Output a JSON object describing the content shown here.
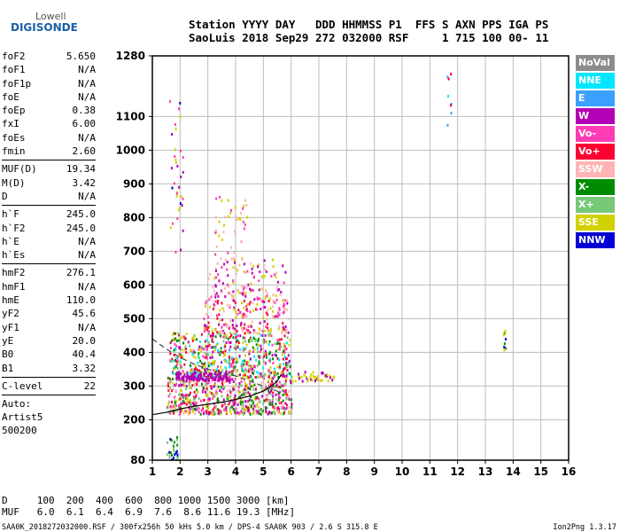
{
  "logo": {
    "line1": "Lowell",
    "line2": "DIGISONDE"
  },
  "header": {
    "labels": "Station YYYY DAY   DDD HHMMSS P1  FFS S AXN PPS IGA PS",
    "values": "SaoLuis 2018 Sep29 272 032000 RSF     1 715 100 00- 11"
  },
  "params": {
    "group1": [
      {
        "label": "foF2",
        "value": "5.650"
      },
      {
        "label": "foF1",
        "value": "N/A"
      },
      {
        "label": "foF1p",
        "value": "N/A"
      },
      {
        "label": "foE",
        "value": "N/A"
      },
      {
        "label": "foEp",
        "value": "0.38"
      },
      {
        "label": "fxI",
        "value": "6.00"
      },
      {
        "label": "foEs",
        "value": "N/A"
      },
      {
        "label": "fmin",
        "value": "2.60"
      }
    ],
    "group2": [
      {
        "label": "MUF(D)",
        "value": "19.34"
      },
      {
        "label": "M(D)",
        "value": "3.42"
      },
      {
        "label": "D",
        "value": "N/A"
      }
    ],
    "group3": [
      {
        "label": "h`F",
        "value": "245.0"
      },
      {
        "label": "h`F2",
        "value": "245.0"
      },
      {
        "label": "h`E",
        "value": "N/A"
      },
      {
        "label": "h`Es",
        "value": "N/A"
      }
    ],
    "group4": [
      {
        "label": "hmF2",
        "value": "276.1"
      },
      {
        "label": "hmF1",
        "value": "N/A"
      },
      {
        "label": "hmE",
        "value": "110.0"
      },
      {
        "label": "yF2",
        "value": "45.6"
      },
      {
        "label": "yF1",
        "value": "N/A"
      },
      {
        "label": "yE",
        "value": "20.0"
      },
      {
        "label": "B0",
        "value": "40.4"
      },
      {
        "label": "B1",
        "value": "3.32"
      }
    ],
    "clevel": {
      "label": "C-level",
      "value": "22"
    },
    "auto": [
      "Auto:",
      "Artist5",
      "500200"
    ]
  },
  "muf_table": {
    "d_row": "D     100  200  400  600  800 1000 1500 3000 [km]",
    "muf_row": "MUF   6.0  6.1  6.4  6.9  7.6  8.6 11.6 19.3 [MHz]"
  },
  "footer": "SAA0K_2018272032000.RSF / 300fx256h 50 kHs 5.0 km / DPS-4 SAA0K 903 / 2.6 S 315.8 E",
  "version": "Ion2Png 1.3.17",
  "legend": [
    {
      "label": "NoVal",
      "color": "#8c8c8c"
    },
    {
      "label": "NNE",
      "color": "#00e6ff"
    },
    {
      "label": "E",
      "color": "#3ca0ff"
    },
    {
      "label": "W",
      "color": "#b400b4"
    },
    {
      "label": "Vo-",
      "color": "#ff3cb4"
    },
    {
      "label": "Vo+",
      "color": "#ff0032"
    },
    {
      "label": "SSW",
      "color": "#ffb4b4"
    },
    {
      "label": "X-",
      "color": "#008c00"
    },
    {
      "label": "X+",
      "color": "#78c878"
    },
    {
      "label": "SSE",
      "color": "#d2d200"
    },
    {
      "label": "NNW",
      "color": "#0000d2"
    }
  ],
  "chart_data": {
    "type": "scatter",
    "title": "",
    "xlabel": "",
    "ylabel": "",
    "xlim": [
      1,
      16
    ],
    "ylim": [
      80,
      1280
    ],
    "x_ticks": [
      1,
      2,
      3,
      4,
      5,
      6,
      7,
      8,
      9,
      10,
      11,
      12,
      13,
      14,
      15,
      16
    ],
    "y_ticks": [
      80,
      200,
      300,
      400,
      500,
      600,
      700,
      800,
      900,
      1000,
      1100,
      1280
    ],
    "grid": true,
    "traces": {
      "f2_trace": {
        "x": [
          1.0,
          1.5,
          2.0,
          2.5,
          3.0,
          3.5,
          4.0,
          4.5,
          5.0,
          5.3,
          5.5,
          5.65
        ],
        "y": [
          215,
          222,
          232,
          240,
          246,
          252,
          260,
          270,
          285,
          300,
          315,
          335
        ]
      },
      "profile": {
        "x": [
          1.0,
          1.5,
          2.0,
          2.5,
          3.0,
          3.5,
          4.0,
          4.5,
          5.0,
          5.5,
          5.65
        ],
        "y": [
          440,
          410,
          385,
          365,
          350,
          340,
          330,
          315,
          300,
          285,
          276
        ]
      }
    },
    "clusters": [
      {
        "x": [
          1.5,
          6.0
        ],
        "y": [
          220,
          330
        ],
        "n": 650,
        "colors": [
          "#ff0032",
          "#ff3cb4",
          "#d2d200",
          "#008c00",
          "#ffb4b4",
          "#b400b4",
          "#78c878"
        ]
      },
      {
        "x": [
          1.6,
          6.0
        ],
        "y": [
          330,
          460
        ],
        "n": 560,
        "colors": [
          "#d2d200",
          "#ff0032",
          "#ff3cb4",
          "#78c878",
          "#00e6ff",
          "#b400b4",
          "#008c00"
        ]
      },
      {
        "x": [
          2.8,
          5.9
        ],
        "y": [
          460,
          560
        ],
        "n": 200,
        "colors": [
          "#b400b4",
          "#ff3cb4",
          "#d2d200",
          "#ff0032",
          "#ffb4b4"
        ]
      },
      {
        "x": [
          3.0,
          5.8
        ],
        "y": [
          560,
          680
        ],
        "n": 120,
        "colors": [
          "#ffb4b4",
          "#b400b4",
          "#ff3cb4",
          "#d2d200"
        ]
      },
      {
        "x": [
          3.2,
          4.4
        ],
        "y": [
          680,
          880
        ],
        "n": 45,
        "colors": [
          "#ffb4b4",
          "#d2d200",
          "#ff3cb4"
        ]
      },
      {
        "x": [
          1.8,
          3.8
        ],
        "y": [
          320,
          345
        ],
        "n": 120,
        "colors": [
          "#b400b4"
        ]
      },
      {
        "x": [
          6.0,
          7.6
        ],
        "y": [
          318,
          345
        ],
        "n": 45,
        "colors": [
          "#d2d200",
          "#b400b4"
        ]
      },
      {
        "x": [
          1.5,
          1.9
        ],
        "y": [
          80,
          160
        ],
        "n": 25,
        "colors": [
          "#008c00",
          "#0000d2",
          "#78c878"
        ]
      },
      {
        "x": [
          1.6,
          2.1
        ],
        "y": [
          700,
          1190
        ],
        "n": 35,
        "colors": [
          "#b400b4",
          "#d2d200",
          "#ff3cb4",
          "#0000d2"
        ]
      },
      {
        "x": [
          11.6,
          11.75
        ],
        "y": [
          1030,
          1230
        ],
        "n": 8,
        "colors": [
          "#00e6ff",
          "#3ca0ff",
          "#ff0032"
        ]
      },
      {
        "x": [
          13.6,
          13.7
        ],
        "y": [
          410,
          480
        ],
        "n": 10,
        "colors": [
          "#0000d2",
          "#008c00",
          "#d2d200"
        ]
      }
    ]
  }
}
